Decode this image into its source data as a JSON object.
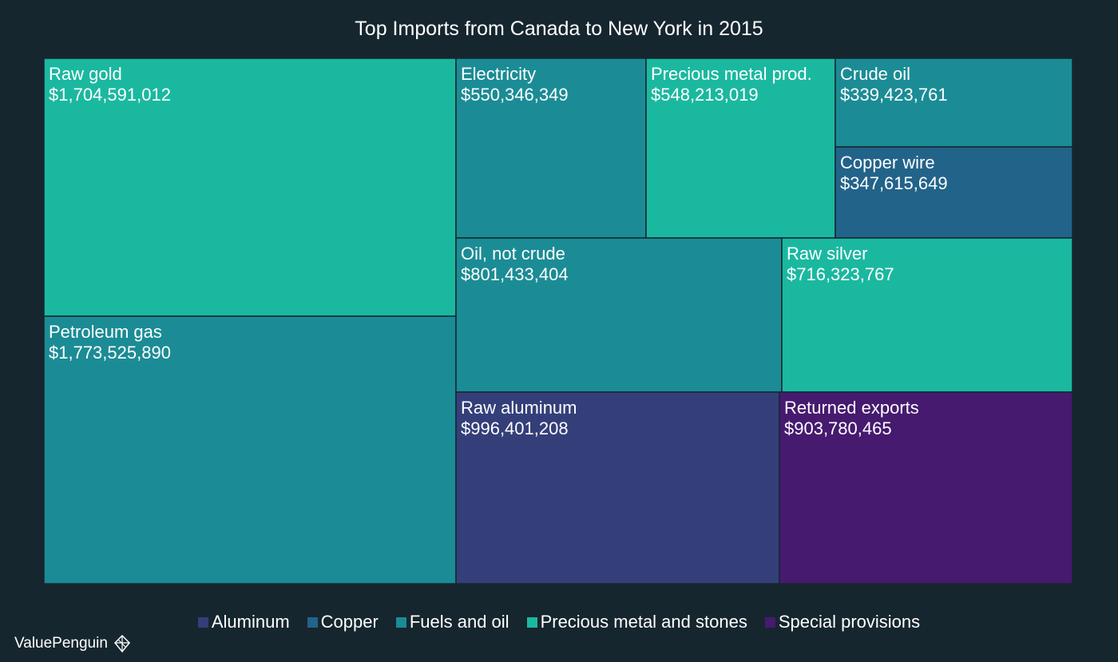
{
  "chart_data": {
    "type": "treemap",
    "title": "Top Imports from Canada to New York in 2015",
    "categories": [
      {
        "name": "Aluminum",
        "color": "#343f7a"
      },
      {
        "name": "Copper",
        "color": "#22638a"
      },
      {
        "name": "Fuels and oil",
        "color": "#1b8c95"
      },
      {
        "name": "Precious metal and stones",
        "color": "#1bb8a0"
      },
      {
        "name": "Special provisions",
        "color": "#461a6f"
      }
    ],
    "items": [
      {
        "label": "Raw gold",
        "value": 1704591012,
        "value_text": "$1,704,591,012",
        "category": "Precious metal and stones"
      },
      {
        "label": "Petroleum gas",
        "value": 1773525890,
        "value_text": "$1,773,525,890",
        "category": "Fuels and oil"
      },
      {
        "label": "Electricity",
        "value": 550346349,
        "value_text": "$550,346,349",
        "category": "Fuels and oil"
      },
      {
        "label": "Precious metal prod.",
        "value": 548213019,
        "value_text": "$548,213,019",
        "category": "Precious metal and stones"
      },
      {
        "label": "Crude oil",
        "value": 339423761,
        "value_text": "$339,423,761",
        "category": "Fuels and oil"
      },
      {
        "label": "Copper wire",
        "value": 347615649,
        "value_text": "$347,615,649",
        "category": "Copper"
      },
      {
        "label": "Oil, not crude",
        "value": 801433404,
        "value_text": "$801,433,404",
        "category": "Fuels and oil"
      },
      {
        "label": "Raw silver",
        "value": 716323767,
        "value_text": "$716,323,767",
        "category": "Precious metal and stones"
      },
      {
        "label": "Raw aluminum",
        "value": 996401208,
        "value_text": "$996,401,208",
        "category": "Aluminum"
      },
      {
        "label": "Returned exports",
        "value": 903780465,
        "value_text": "$903,780,465",
        "category": "Special provisions"
      }
    ]
  },
  "brand": {
    "name": "ValuePenguin"
  }
}
